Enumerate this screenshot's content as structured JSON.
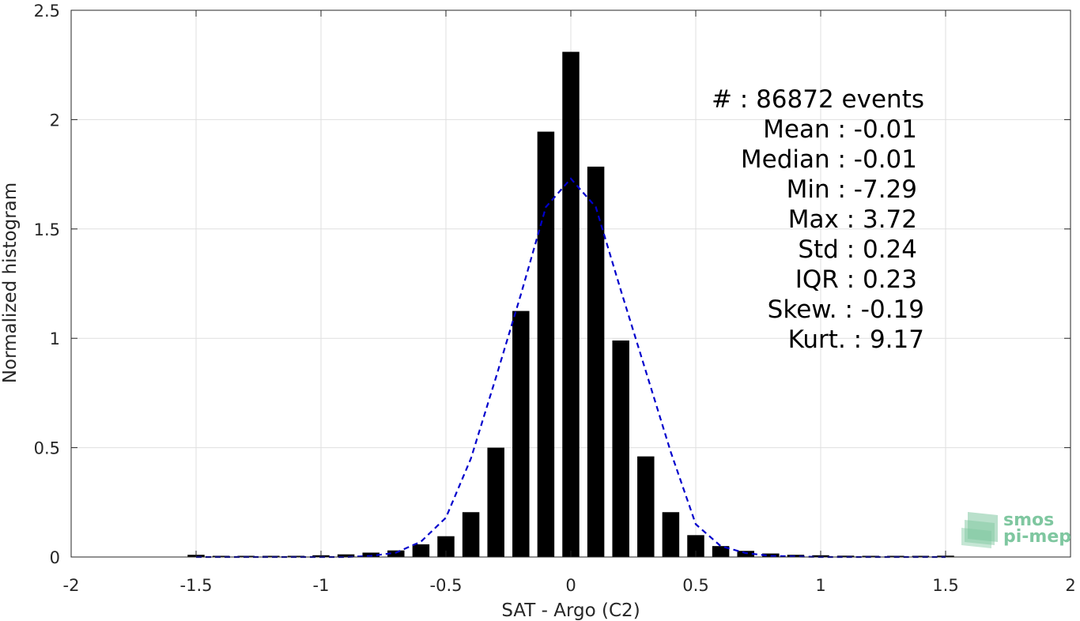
{
  "chart_data": {
    "type": "bar",
    "xlabel": "SAT - Argo (C2)",
    "ylabel": "Normalized histogram",
    "xlim": [
      -2,
      2
    ],
    "ylim": [
      0,
      2.5
    ],
    "xticks": [
      "-2",
      "-1.5",
      "-1",
      "-0.5",
      "0",
      "0.5",
      "1",
      "1.5",
      "2"
    ],
    "yticks": [
      "0",
      "0.5",
      "1",
      "1.5",
      "2",
      "2.5"
    ],
    "grid": true,
    "bar_color": "#000000",
    "fit_color": "#0000cc",
    "x": [
      -1.5,
      -1.4,
      -1.3,
      -1.2,
      -1.1,
      -1.0,
      -0.9,
      -0.8,
      -0.7,
      -0.6,
      -0.5,
      -0.4,
      -0.3,
      -0.2,
      -0.1,
      0.0,
      0.1,
      0.2,
      0.3,
      0.4,
      0.5,
      0.6,
      0.7,
      0.8,
      0.9,
      1.0,
      1.1,
      1.2,
      1.3,
      1.4,
      1.5
    ],
    "values": [
      0.01,
      0.004,
      0.004,
      0.004,
      0.005,
      0.008,
      0.012,
      0.02,
      0.03,
      0.058,
      0.095,
      0.205,
      0.5,
      1.125,
      1.945,
      2.31,
      1.785,
      0.99,
      0.46,
      0.205,
      0.1,
      0.05,
      0.028,
      0.016,
      0.01,
      0.008,
      0.006,
      0.004,
      0.003,
      0.003,
      0.006
    ],
    "fit": {
      "type": "normal",
      "mean": -0.01,
      "std": 0.23,
      "x": [
        -1.5,
        -1.2,
        -0.9,
        -0.8,
        -0.7,
        -0.6,
        -0.5,
        -0.4,
        -0.3,
        -0.2,
        -0.1,
        0.0,
        0.1,
        0.2,
        0.3,
        0.4,
        0.5,
        0.6,
        0.7,
        0.8,
        1.0,
        1.2,
        1.5
      ],
      "values": [
        0.0,
        0.0,
        0.0,
        0.005,
        0.02,
        0.07,
        0.18,
        0.45,
        0.82,
        1.2,
        1.6,
        1.73,
        1.6,
        1.22,
        0.85,
        0.48,
        0.15,
        0.05,
        0.018,
        0.005,
        0.0,
        0.0,
        0.0
      ]
    }
  },
  "stats": [
    {
      "label": "#  : 86872 events"
    },
    {
      "label": "Mean : -0.01"
    },
    {
      "label": "Median : -0.01"
    },
    {
      "label": "Min : -7.29"
    },
    {
      "label": "Max : 3.72"
    },
    {
      "label": "Std : 0.24"
    },
    {
      "label": "IQR : 0.23"
    },
    {
      "label": "Skew. : -0.19"
    },
    {
      "label": "Kurt. : 9.17"
    }
  ],
  "logo": {
    "line1": "smos",
    "line2": "pi-mep",
    "color": "#7fc7a0"
  }
}
